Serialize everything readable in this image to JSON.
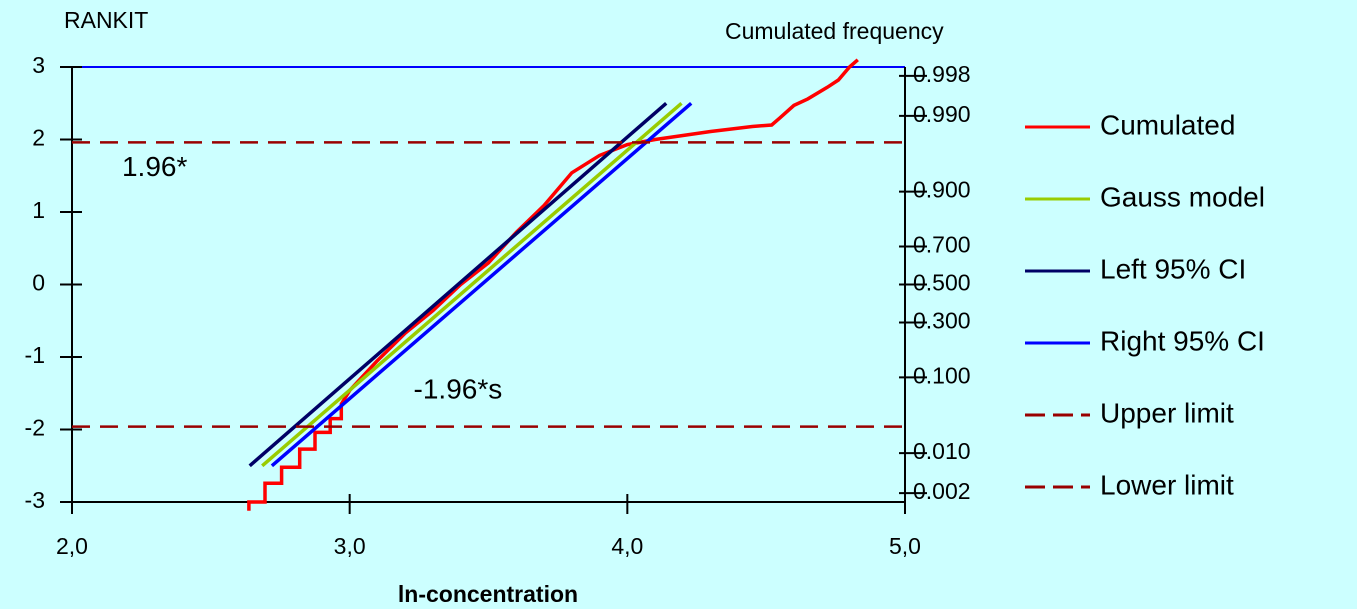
{
  "chart_data": {
    "type": "line",
    "y_label": "RANKIT",
    "y2_label": "Cumulated frequency",
    "x_label": "ln-concentration",
    "xlim": [
      2.0,
      5.0
    ],
    "xticks": [
      {
        "value": 2.0,
        "label": "2,0"
      },
      {
        "value": 3.0,
        "label": "3,0"
      },
      {
        "value": 4.0,
        "label": "4,0"
      },
      {
        "value": 5.0,
        "label": "5,0"
      }
    ],
    "ylim": [
      -3,
      3
    ],
    "yticks": [
      3,
      2,
      1,
      0,
      -1,
      -2,
      -3
    ],
    "y2scale": "probability",
    "y2lim": [
      0.00135,
      0.99865
    ],
    "y2ticks": [
      0.998,
      {
        "value": 0.99,
        "label": "0.990"
      },
      {
        "value": 0.9,
        "label": "0.900"
      },
      {
        "value": 0.7,
        "label": "0.700"
      },
      {
        "value": 0.5,
        "label": "0.500"
      },
      {
        "value": 0.3,
        "label": "0.300"
      },
      {
        "value": 0.1,
        "label": "0.100"
      },
      {
        "value": 0.01,
        "label": "0.010"
      },
      0.002
    ],
    "grid": false,
    "legend": "right",
    "series": [
      {
        "name": "Cumulated",
        "color": "#ff0000",
        "x": [
          2.637,
          2.637,
          2.695,
          2.695,
          2.755,
          2.755,
          2.82,
          2.82,
          2.875,
          2.875,
          2.93,
          2.93,
          2.97,
          2.97,
          3.0,
          3.1,
          3.2,
          3.3,
          3.4,
          3.5,
          3.6,
          3.7,
          3.8,
          3.9,
          4.0,
          4.1,
          4.3,
          4.45,
          4.52,
          4.55,
          4.6,
          4.65,
          4.72,
          4.76,
          4.8,
          4.83
        ],
        "values": [
          -3.12,
          -3.0,
          -3.0,
          -2.74,
          -2.74,
          -2.52,
          -2.52,
          -2.27,
          -2.27,
          -2.04,
          -2.04,
          -1.85,
          -1.85,
          -1.65,
          -1.46,
          -1.05,
          -0.67,
          -0.36,
          0.0,
          0.3,
          0.72,
          1.09,
          1.54,
          1.78,
          1.93,
          2.0,
          2.11,
          2.18,
          2.2,
          2.3,
          2.47,
          2.56,
          2.72,
          2.82,
          3.0,
          3.1
        ]
      },
      {
        "name": "Gauss model",
        "color": "#99cc00",
        "x": [
          2.685,
          4.195
        ],
        "values": [
          -2.5,
          2.5
        ]
      },
      {
        "name": "Left 95% CI",
        "color": "#000066",
        "x": [
          2.64,
          4.14
        ],
        "values": [
          -2.5,
          2.5
        ]
      },
      {
        "name": "Right 95% CI",
        "color": "#0000ff",
        "x": [
          2.72,
          4.23
        ],
        "values": [
          -2.5,
          2.5
        ]
      },
      {
        "name": "Upper limit",
        "color": "#990000",
        "dash": true,
        "values": [
          1.96
        ]
      },
      {
        "name": "Lower limit",
        "color": "#990000",
        "dash": true,
        "values": [
          -1.96
        ]
      }
    ],
    "annotations": [
      {
        "text": "1.96*",
        "x": 2.18,
        "y": 1.6
      },
      {
        "text": "-1.96*s",
        "x": 3.23,
        "y": -1.47
      }
    ]
  }
}
